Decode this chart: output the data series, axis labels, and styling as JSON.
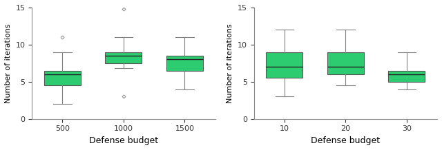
{
  "left_plot": {
    "xlabel": "Defense budget",
    "ylabel": "Number of iterations",
    "ylim": [
      0,
      15
    ],
    "yticks": [
      0,
      5,
      10,
      15
    ],
    "categories": [
      "500",
      "1000",
      "1500"
    ],
    "boxes": [
      {
        "whislo": 2.0,
        "q1": 4.5,
        "med": 6.0,
        "q3": 6.5,
        "whishi": 9.0,
        "fliers": [
          11.0
        ]
      },
      {
        "whislo": 6.8,
        "q1": 7.5,
        "med": 8.5,
        "q3": 9.0,
        "whishi": 11.0,
        "fliers": [
          3.0
        ],
        "extra_flier": 14.8
      },
      {
        "whislo": 4.0,
        "q1": 6.5,
        "med": 8.0,
        "q3": 8.5,
        "whishi": 11.0,
        "fliers": []
      }
    ]
  },
  "right_plot": {
    "xlabel": "Defense budget",
    "ylabel": "Number of iterations",
    "ylim": [
      0,
      15
    ],
    "yticks": [
      0,
      5,
      10,
      15
    ],
    "categories": [
      "10",
      "20",
      "30"
    ],
    "boxes": [
      {
        "whislo": 3.0,
        "q1": 5.5,
        "med": 7.0,
        "q3": 9.0,
        "whishi": 12.0,
        "fliers": []
      },
      {
        "whislo": 4.5,
        "q1": 6.0,
        "med": 7.0,
        "q3": 9.0,
        "whishi": 12.0,
        "fliers": []
      },
      {
        "whislo": 4.0,
        "q1": 5.0,
        "med": 6.0,
        "q3": 6.5,
        "whishi": 9.0,
        "fliers": []
      }
    ]
  },
  "box_color": "#2ecc71",
  "box_edge_color": "#555555",
  "whisker_color": "#808080",
  "flier_color": "#888888",
  "median_color": "#222222",
  "tick_fontsize": 8,
  "label_fontsize": 9,
  "ylabel_fontsize": 8
}
